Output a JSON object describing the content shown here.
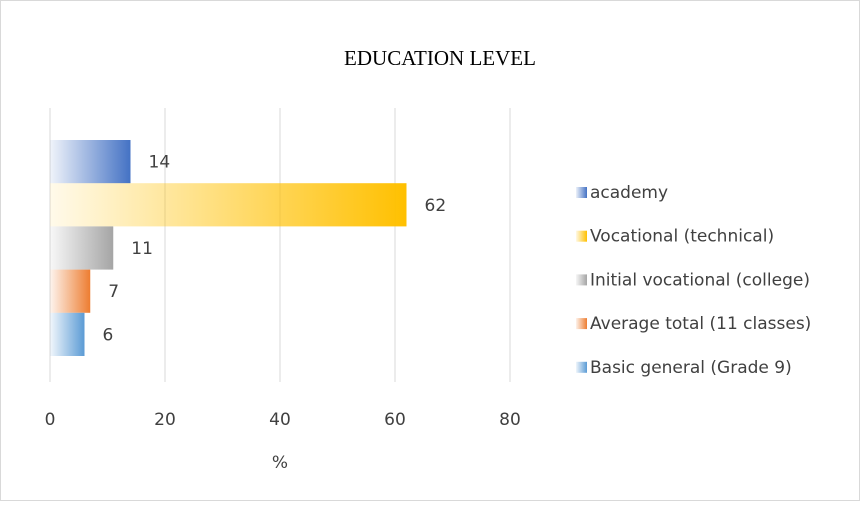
{
  "chart_data": {
    "type": "bar",
    "orientation": "horizontal",
    "title": "EDUCATION LEVEL",
    "categories": [
      null
    ],
    "series": [
      {
        "name": "academy",
        "color": "#4472c4",
        "values": [
          14
        ]
      },
      {
        "name": "Vocational (technical)",
        "color": "#ffc000",
        "values": [
          62
        ]
      },
      {
        "name": "Initial vocational (college)",
        "color": "#a5a5a5",
        "values": [
          11
        ]
      },
      {
        "name": "Average total (11 classes)",
        "color": "#ed7d31",
        "values": [
          7
        ]
      },
      {
        "name": "Basic general (Grade 9)",
        "color": "#5b9bd5",
        "values": [
          6
        ]
      }
    ],
    "x_label": "%",
    "xlim": [
      0,
      80
    ],
    "xticks": [
      0,
      20,
      40,
      60,
      80
    ],
    "grid": true,
    "legend": "right"
  }
}
